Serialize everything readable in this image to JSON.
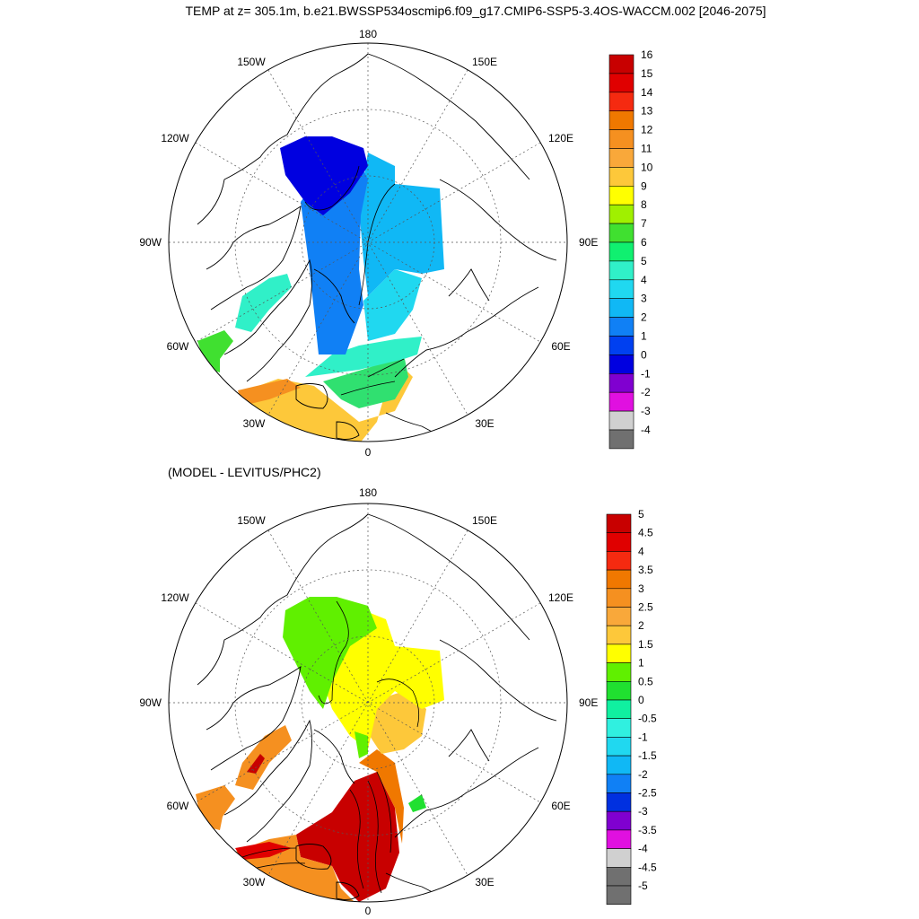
{
  "title": "TEMP at z= 305.1m, b.e21.BWSSP534oscmip6.f09_g17.CMIP6-SSP5-3.4OS-WACCM.002 [2046-2075]",
  "subtitle": "(MODEL - LEVITUS/PHC2)",
  "lon_labels": {
    "top": "180",
    "bottom": "0",
    "left": "90W",
    "right": "90E",
    "upper_left": "150W",
    "upper_right": "150E",
    "mid_upper_left": "120W",
    "mid_upper_right": "120E",
    "lower_left": "60W",
    "lower_right": "60E",
    "bottom_left": "30W",
    "bottom_right": "30E"
  },
  "colors": {
    "background": "#ffffff",
    "grid": "#555555",
    "coast": "#000000"
  },
  "colorbar_top": {
    "labels": [
      "16",
      "15",
      "14",
      "13",
      "12",
      "11",
      "10",
      "9",
      "8",
      "7",
      "6",
      "5",
      "4",
      "3",
      "2",
      "1",
      "0",
      "-1",
      "-2",
      "-3",
      "-4"
    ],
    "fills": [
      "#c80000",
      "#e00000",
      "#f52a10",
      "#f07800",
      "#f59020",
      "#f9a83a",
      "#fdc83a",
      "#ffff00",
      "#a0f000",
      "#40e030",
      "#10f070",
      "#30f0c8",
      "#20d8f0",
      "#10b8f5",
      "#1080f5",
      "#0040f0",
      "#0000e0",
      "#8000d0",
      "#e010e0",
      "#d0d0d0",
      "#707070"
    ]
  },
  "colorbar_bottom": {
    "labels": [
      "5",
      "4.5",
      "4",
      "3.5",
      "3",
      "2.5",
      "2",
      "1.5",
      "1",
      "0.5",
      "0",
      "-0.5",
      "-1",
      "-1.5",
      "-2",
      "-2.5",
      "-3",
      "-3.5",
      "-4",
      "-4.5",
      "-5"
    ],
    "fills": [
      "#c80000",
      "#e00000",
      "#f52a10",
      "#f07800",
      "#f59020",
      "#f9a83a",
      "#fdc83a",
      "#ffff00",
      "#60f000",
      "#20e030",
      "#10f0a0",
      "#30f0e0",
      "#20d8f0",
      "#10b8f5",
      "#1080f5",
      "#0030e0",
      "#8000d0",
      "#e010e0",
      "#d0d0d0",
      "#707070",
      "#707070"
    ]
  }
}
